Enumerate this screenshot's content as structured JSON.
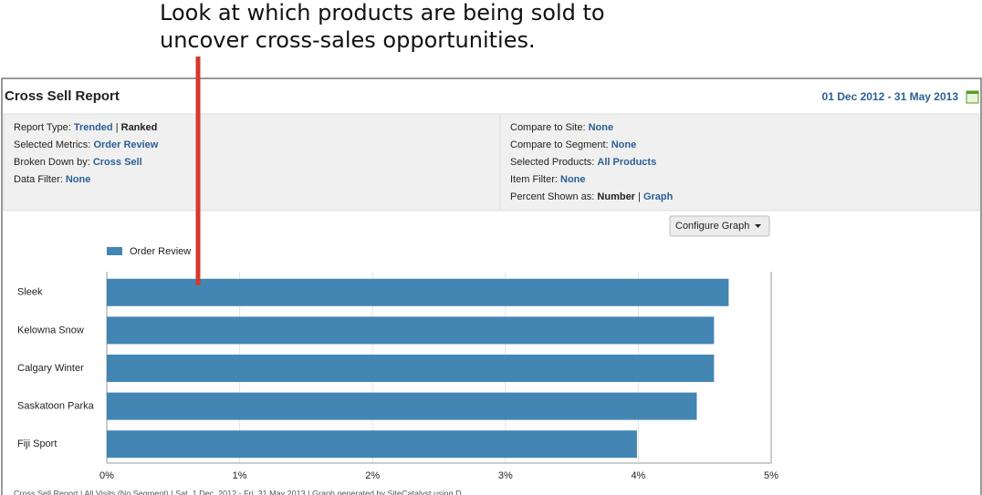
{
  "annotation": {
    "lines": [
      "Look at which products are being sold to",
      "uncover cross-sales opportunities."
    ]
  },
  "report": {
    "title": "Cross Sell Report",
    "date_range": "01 Dec 2012 - 31 May 2013"
  },
  "separator": "|",
  "filters": {
    "left": [
      {
        "label": "Report Type:",
        "options": [
          "Trended",
          "Ranked"
        ],
        "selected": 1
      },
      {
        "label": "Selected Metrics:",
        "options": [
          "Order Review"
        ]
      },
      {
        "label": "Broken Down by:",
        "options": [
          "Cross Sell"
        ]
      },
      {
        "label": "Data Filter:",
        "options": [
          "None"
        ]
      }
    ],
    "right": [
      {
        "label": "Compare to Site:",
        "options": [
          "None"
        ]
      },
      {
        "label": "Compare to Segment:",
        "options": [
          "None"
        ]
      },
      {
        "label": "Selected Products:",
        "options": [
          "All Products"
        ]
      },
      {
        "label": "Item Filter:",
        "options": [
          "None"
        ]
      },
      {
        "label": "Percent Shown as:",
        "options": [
          "Number",
          "Graph"
        ],
        "selected": 0
      }
    ]
  },
  "configure_button": "Configure Graph",
  "chart_data": {
    "type": "hbar",
    "categories": [
      "Sleek",
      "Kelowna Snow",
      "Calgary Winter",
      "Saskatoon Parka",
      "Fiji Sport"
    ],
    "series": [
      {
        "name": "Order Review",
        "color": "#4386b4",
        "values": [
          4.68,
          4.57,
          4.57,
          4.44,
          3.99
        ]
      }
    ],
    "xlim": [
      0,
      5
    ],
    "xticks": [
      {
        "value": 0,
        "label": "0%"
      },
      {
        "value": 1,
        "label": "1%"
      },
      {
        "value": 2,
        "label": "2%"
      },
      {
        "value": 3,
        "label": "3%"
      },
      {
        "value": 4,
        "label": "4%"
      },
      {
        "value": 5,
        "label": "5%"
      }
    ],
    "grid": true
  },
  "footer": "Cross Sell Report | All Visits (No Segment) | Sat. 1 Dec. 2012 - Fri. 31 May 2013 | Graph generated by SiteCatalyst using D"
}
